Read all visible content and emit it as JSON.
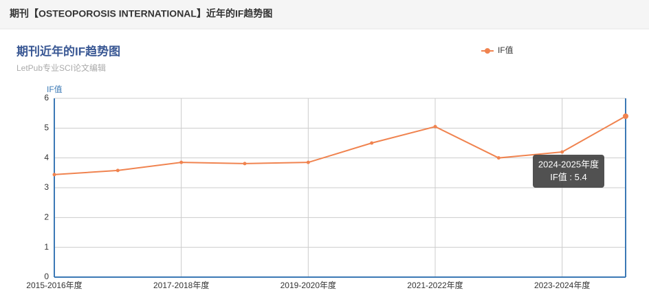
{
  "header": {
    "title": "期刊【OSTEOPOROSIS INTERNATIONAL】近年的IF趋势图"
  },
  "chart_data": {
    "type": "line",
    "title": "期刊近年的IF趋势图",
    "subtitle": "LetPub专业SCI论文编辑",
    "y_label": "IF值",
    "categories": [
      "2015-2016年度",
      null,
      "2017-2018年度",
      null,
      "2019-2020年度",
      null,
      "2021-2022年度",
      null,
      "2023-2024年度",
      "2024-2025年度"
    ],
    "series": [
      {
        "name": "IF值",
        "color": "#f0834f",
        "values": [
          3.44,
          3.58,
          3.85,
          3.81,
          3.85,
          4.5,
          5.05,
          4.0,
          4.2,
          5.4
        ]
      }
    ],
    "ylim": [
      0,
      6
    ],
    "yticks": [
      0,
      1,
      2,
      3,
      4,
      5,
      6
    ],
    "grid": true,
    "legend": "top-right",
    "tooltip": {
      "index": 9,
      "separator": " : "
    }
  }
}
